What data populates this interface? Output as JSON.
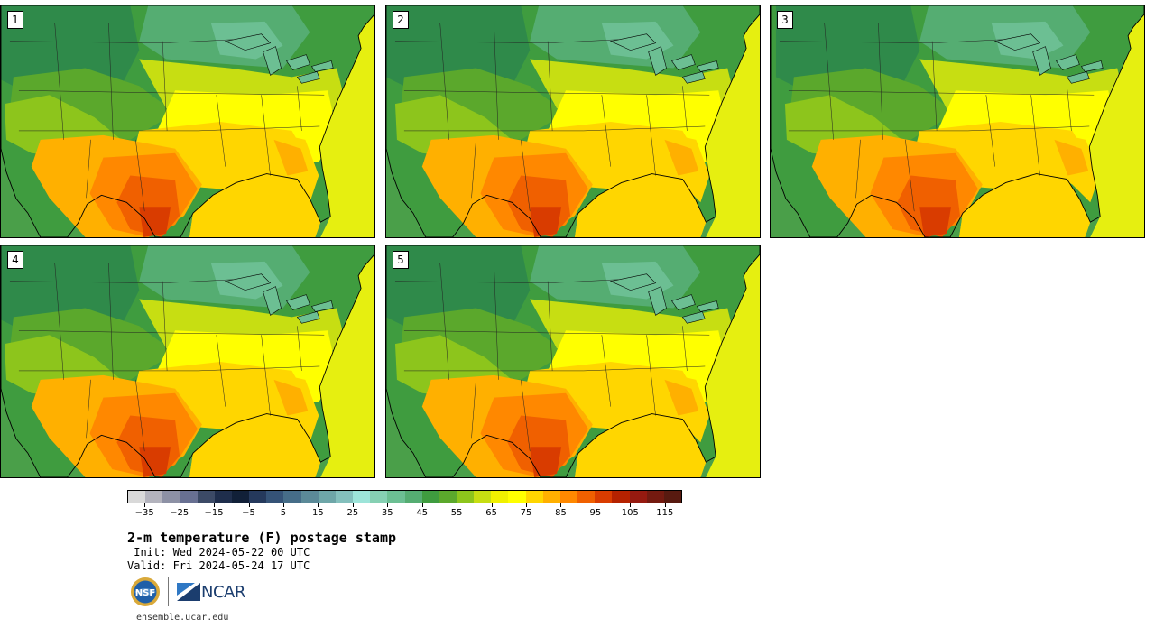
{
  "panels": [
    {
      "label": "1"
    },
    {
      "label": "2"
    },
    {
      "label": "3"
    },
    {
      "label": "4"
    },
    {
      "label": "5"
    }
  ],
  "colorbar": {
    "colors": [
      "#d9d9d9",
      "#b3b3bd",
      "#8d91a5",
      "#687092",
      "#3c4a66",
      "#1f2e4c",
      "#112038",
      "#25395c",
      "#355377",
      "#466d88",
      "#5b8a98",
      "#6ea6a8",
      "#84c0bd",
      "#9de4d9",
      "#86d0b3",
      "#6cbf93",
      "#55ad72",
      "#3f9c3f",
      "#5ba82c",
      "#8dc51c",
      "#c7de12",
      "#f0f000",
      "#ffff00",
      "#ffd600",
      "#ffb000",
      "#ff8800",
      "#f06000",
      "#d93c00",
      "#b52200",
      "#961a10",
      "#741a10",
      "#581a10"
    ],
    "tick_values": [
      -35,
      -25,
      -15,
      -5,
      5,
      15,
      25,
      35,
      45,
      55,
      65,
      75,
      85,
      95,
      105,
      115
    ],
    "tick_labels": [
      "−35",
      "−25",
      "−15",
      "−5",
      "5",
      "15",
      "25",
      "35",
      "45",
      "55",
      "65",
      "75",
      "85",
      "95",
      "105",
      "115"
    ],
    "min": -40,
    "max": 120
  },
  "title": "2-m temperature (F) postage stamp",
  "init": " Init: Wed 2024-05-22 00 UTC",
  "valid": "Valid: Fri 2024-05-24 17 UTC",
  "logos": {
    "nsf": "NSF",
    "ncar": "NCAR"
  },
  "site": "ensemble.ucar.edu"
}
